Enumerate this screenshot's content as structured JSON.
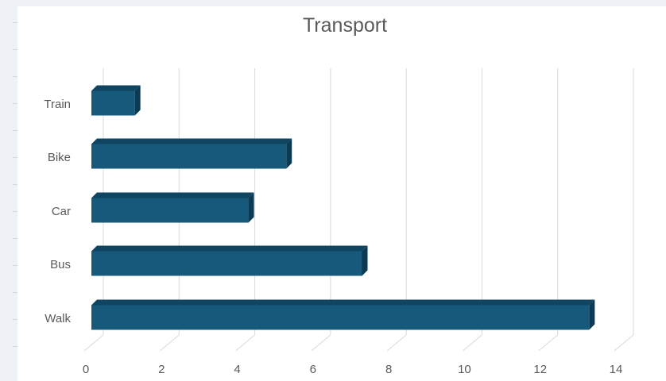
{
  "chart_data": {
    "type": "bar",
    "orientation": "horizontal",
    "style": "3d",
    "title": "Transport",
    "categories": [
      "Train",
      "Bike",
      "Car",
      "Bus",
      "Walk"
    ],
    "values": [
      1,
      5,
      4,
      7,
      13
    ],
    "xlim": [
      0,
      14
    ],
    "xticks": [
      0,
      2,
      4,
      6,
      8,
      10,
      12,
      14
    ],
    "xlabel": "",
    "ylabel": "",
    "grid": true,
    "legend": false,
    "colors": {
      "bar_front": "#17597a",
      "bar_top": "#0f4560",
      "bar_side": "#0b3a52",
      "gridline": "#d9d9d9",
      "text": "#595959"
    }
  }
}
